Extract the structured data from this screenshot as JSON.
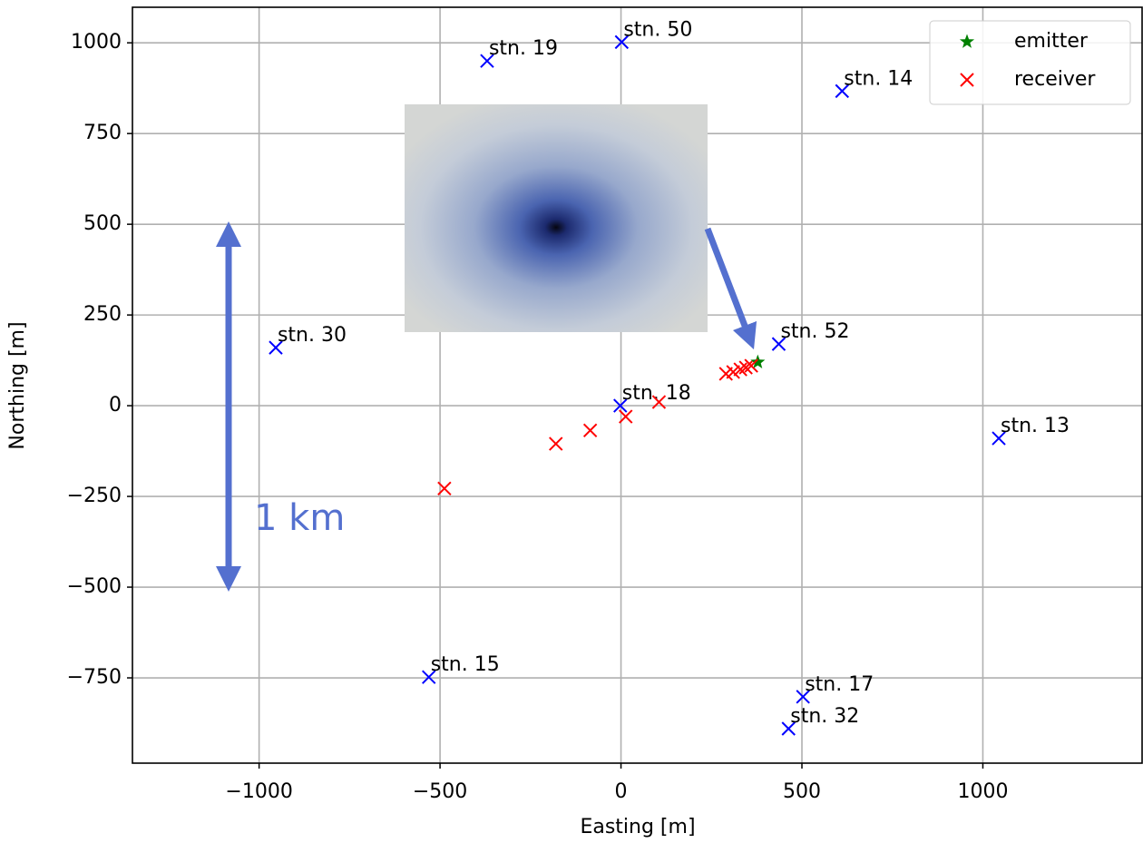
{
  "chart_data": {
    "type": "scatter",
    "xlabel": "Easting [m]",
    "ylabel": "Northing [m]",
    "xlim": [
      -1350,
      1440
    ],
    "ylim": [
      -985,
      1098
    ],
    "xticks": [
      {
        "value": -1000,
        "label": "−1000"
      },
      {
        "value": -500,
        "label": "−500"
      },
      0,
      500,
      1000
    ],
    "yticks": [
      {
        "value": -750,
        "label": "−750"
      },
      {
        "value": -500,
        "label": "−500"
      },
      {
        "value": -250,
        "label": "−250"
      },
      0,
      250,
      500,
      750,
      1000
    ],
    "grid": true,
    "legend": "upper right",
    "series": [
      {
        "name": "emitter",
        "color": "#008000",
        "marker": "star",
        "x": [
          378
        ],
        "y": [
          120
        ]
      },
      {
        "name": "receiver",
        "color": "#ff0000",
        "marker": "x",
        "x": [
          -488,
          -180,
          -85,
          13,
          105,
          290,
          310,
          330,
          345,
          360
        ],
        "y": [
          -228,
          -105,
          -68,
          -30,
          10,
          88,
          93,
          100,
          105,
          110
        ]
      }
    ],
    "stations": {
      "color": "#0000ff",
      "marker": "x",
      "labels": [
        "stn. 19",
        "stn. 50",
        "stn. 14",
        "stn. 30",
        "stn. 52",
        "stn. 18",
        "stn. 13",
        "stn. 15",
        "stn. 17",
        "stn. 32"
      ],
      "x": [
        -370,
        2,
        611,
        -954,
        436,
        -2,
        1044,
        -531,
        503,
        463
      ],
      "y": [
        950,
        1002,
        867,
        160,
        170,
        0,
        -90,
        -748,
        -802,
        -890
      ]
    },
    "annotation": "1 km"
  }
}
